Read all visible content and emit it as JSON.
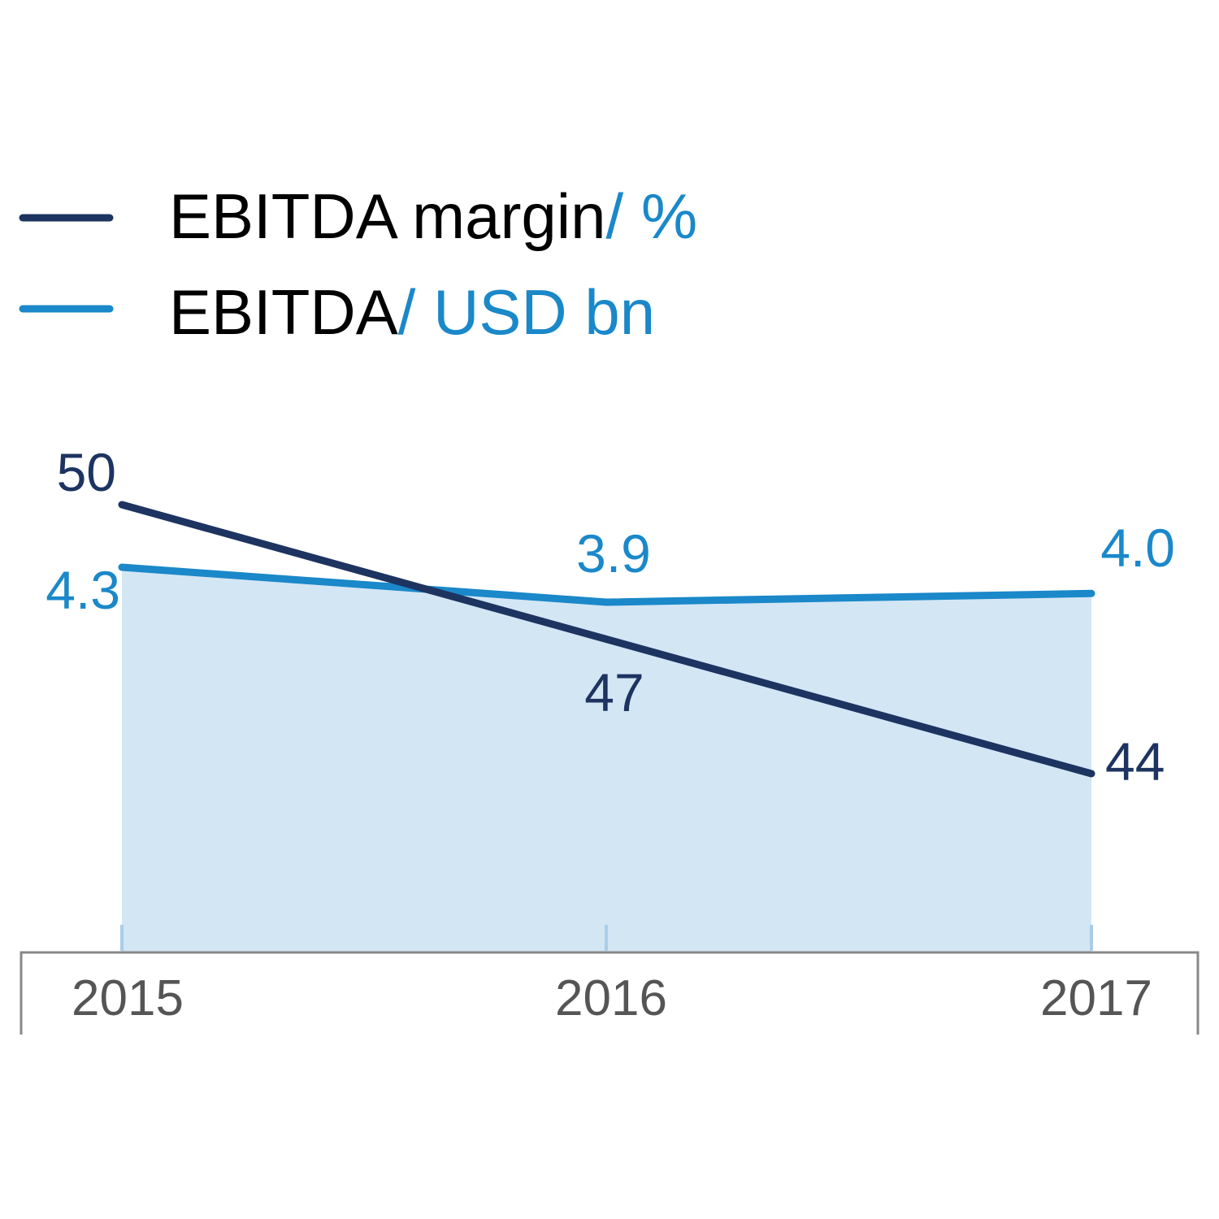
{
  "colors": {
    "margin_line": "#1d3461",
    "ebitda_line": "#1a88c9",
    "area_fill": "#d3e6f4",
    "tick": "#a9cde9",
    "axis": "#888888",
    "axis_text": "#555555",
    "legend_text": "#000000"
  },
  "legend": [
    {
      "name": "EBITDA margin",
      "unit": "/ %"
    },
    {
      "name": "EBITDA",
      "unit": "/ USD bn"
    }
  ],
  "chart_data": {
    "type": "line",
    "x": [
      "2015",
      "2016",
      "2017"
    ],
    "series": [
      {
        "name": "EBITDA margin",
        "unit": "%",
        "values": [
          50,
          47,
          44
        ],
        "labels": [
          "50",
          "47",
          "44"
        ]
      },
      {
        "name": "EBITDA",
        "unit": "USD bn",
        "values": [
          4.3,
          3.9,
          4.0
        ],
        "labels": [
          "4.3",
          "3.9",
          "4.0"
        ],
        "filled_area": true
      }
    ],
    "grid": false
  }
}
